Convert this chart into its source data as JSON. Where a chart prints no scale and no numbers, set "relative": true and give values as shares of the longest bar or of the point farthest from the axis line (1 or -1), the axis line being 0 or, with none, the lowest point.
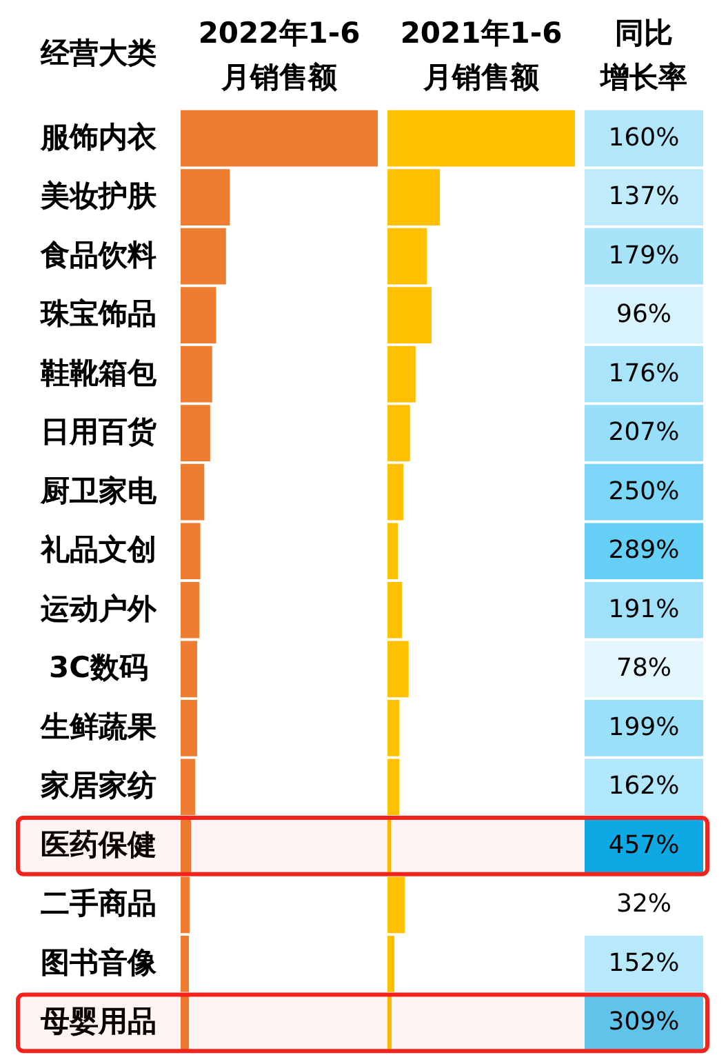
{
  "chart_data": [
    {
      "type": "bar",
      "orientation": "horizontal",
      "relative": true,
      "title": "2022年1-6月销售额",
      "ylabel": "经营大类",
      "tick_labels": "y",
      "color": "#ed7d31",
      "categories": [
        "服饰内衣",
        "美妆护肤",
        "食品饮料",
        "珠宝饰品",
        "鞋靴箱包",
        "日用百货",
        "厨卫家电",
        "礼品文创",
        "运动户外",
        "3C数码",
        "生鲜蔬果",
        "家居家纺",
        "医药保健",
        "二手商品",
        "图书音像",
        "母婴用品"
      ],
      "values": [
        1,
        0.25,
        0.23,
        0.18,
        0.16,
        0.15,
        0.12,
        0.1,
        0.095,
        0.084,
        0.084,
        0.074,
        0.053,
        0.046,
        0.042,
        0.042
      ],
      "bands": [
        {
          "axis": "y",
          "from": "医药保健",
          "to": "医药保健",
          "color": "#f5231b"
        },
        {
          "axis": "y",
          "from": "母婴用品",
          "to": "母婴用品",
          "color": "#f5231b"
        }
      ]
    },
    {
      "type": "bar",
      "orientation": "horizontal",
      "relative": true,
      "title": "2021年1-6月销售额",
      "tick_labels": false,
      "color": "#ffc000",
      "categories": [
        "服饰内衣",
        "美妆护肤",
        "食品饮料",
        "珠宝饰品",
        "鞋靴箱包",
        "日用百货",
        "厨卫家电",
        "礼品文创",
        "运动户外",
        "3C数码",
        "生鲜蔬果",
        "家居家纺",
        "医药保健",
        "二手商品",
        "图书音像",
        "母婴用品"
      ],
      "values": [
        1,
        0.28,
        0.21,
        0.235,
        0.15,
        0.12,
        0.085,
        0.056,
        0.078,
        0.113,
        0.063,
        0.063,
        0.019,
        0.093,
        0.037,
        0.022
      ]
    },
    {
      "type": "heatmap",
      "title": "同比增长率",
      "tick_labels": false,
      "categories": [
        null
      ],
      "y_categories": [
        "服饰内衣",
        "美妆护肤",
        "食品饮料",
        "珠宝饰品",
        "鞋靴箱包",
        "日用百货",
        "厨卫家电",
        "礼品文创",
        "运动户外",
        "3C数码",
        "生鲜蔬果",
        "家居家纺",
        "医药保健",
        "二手商品",
        "图书音像",
        "母婴用品"
      ],
      "cells": [
        [
          160
        ],
        [
          137
        ],
        [
          179
        ],
        [
          96
        ],
        [
          176
        ],
        [
          207
        ],
        [
          250
        ],
        [
          289
        ],
        [
          191
        ],
        [
          78
        ],
        [
          199
        ],
        [
          162
        ],
        [
          457
        ],
        [
          32
        ],
        [
          152
        ],
        [
          309
        ]
      ],
      "cell_labels": [
        [
          "160%"
        ],
        [
          "137%"
        ],
        [
          "179%"
        ],
        [
          "96%"
        ],
        [
          "176%"
        ],
        [
          "207%"
        ],
        [
          "250%"
        ],
        [
          "289%"
        ],
        [
          "191%"
        ],
        [
          "78%"
        ],
        [
          "199%"
        ],
        [
          "162%"
        ],
        [
          "457%"
        ],
        [
          "32%"
        ],
        [
          "152%"
        ],
        [
          "309%"
        ]
      ]
    }
  ]
}
